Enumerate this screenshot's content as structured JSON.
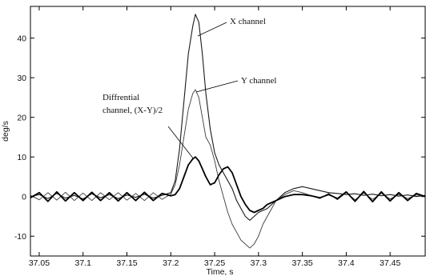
{
  "chart_data": {
    "type": "line",
    "title": "",
    "xlabel": "Time, s",
    "ylabel": "deg/s",
    "xlim": [
      37.04,
      37.49
    ],
    "ylim": [
      -15,
      48
    ],
    "xticks": [
      37.05,
      37.1,
      37.15,
      37.2,
      37.25,
      37.3,
      37.35,
      37.4,
      37.45
    ],
    "xtick_labels": [
      "37.05",
      "37.1",
      "37.15",
      "37.2",
      "37.25",
      "37.3",
      "37.35",
      "37.4",
      "37.45"
    ],
    "yticks": [
      -10,
      0,
      10,
      20,
      30,
      40
    ],
    "ytick_labels": [
      "-10",
      "0",
      "10",
      "20",
      "30",
      "40"
    ],
    "grid": false,
    "legend": "none",
    "annotations": [
      {
        "text": "X channel",
        "series": "X channel"
      },
      {
        "text": "Y channel",
        "series": "Y channel"
      },
      {
        "text": "Diffrential",
        "series": "Diffrential channel, (X-Y)/2"
      },
      {
        "text": "channel, (X-Y)/2",
        "series": "Diffrential channel, (X-Y)/2"
      }
    ],
    "series": [
      {
        "name": "X channel",
        "color": "#1a1a1a",
        "x": [
          37.04,
          37.05,
          37.06,
          37.07,
          37.08,
          37.09,
          37.1,
          37.11,
          37.12,
          37.13,
          37.14,
          37.15,
          37.16,
          37.17,
          37.18,
          37.19,
          37.2,
          37.205,
          37.21,
          37.215,
          37.22,
          37.225,
          37.228,
          37.232,
          37.236,
          37.24,
          37.245,
          37.25,
          37.255,
          37.26,
          37.265,
          37.27,
          37.275,
          37.28,
          37.285,
          37.29,
          37.295,
          37.3,
          37.31,
          37.32,
          37.33,
          37.34,
          37.35,
          37.36,
          37.37,
          37.38,
          37.39,
          37.4,
          37.41,
          37.42,
          37.43,
          37.44,
          37.45,
          37.46,
          37.47,
          37.48,
          37.49
        ],
        "y": [
          0,
          0.5,
          -0.5,
          0.8,
          -0.4,
          0.3,
          -0.6,
          0.7,
          -0.3,
          0.5,
          -0.5,
          0.4,
          -0.2,
          0.6,
          -0.4,
          0.3,
          1,
          4,
          12,
          24,
          36,
          43,
          46,
          44,
          36,
          26,
          17,
          11,
          8,
          6,
          4,
          2,
          -1,
          -3,
          -5,
          -6,
          -5,
          -4,
          -3,
          -1,
          1,
          2,
          2.5,
          2,
          1.5,
          1,
          0.8,
          0.5,
          0.7,
          0.3,
          0.6,
          0.2,
          0.5,
          0.1,
          0.4,
          0,
          0.3
        ]
      },
      {
        "name": "Y channel",
        "color": "#3a3a3a",
        "x": [
          37.04,
          37.05,
          37.06,
          37.07,
          37.08,
          37.09,
          37.1,
          37.11,
          37.12,
          37.13,
          37.14,
          37.15,
          37.16,
          37.17,
          37.18,
          37.19,
          37.2,
          37.205,
          37.21,
          37.215,
          37.22,
          37.225,
          37.228,
          37.232,
          37.236,
          37.24,
          37.245,
          37.25,
          37.255,
          37.26,
          37.265,
          37.27,
          37.275,
          37.28,
          37.285,
          37.29,
          37.295,
          37.3,
          37.305,
          37.31,
          37.315,
          37.32,
          37.33,
          37.34,
          37.35,
          37.36,
          37.37,
          37.38,
          37.39,
          37.4,
          37.41,
          37.42,
          37.43,
          37.44,
          37.45,
          37.46,
          37.47,
          37.48,
          37.49
        ],
        "y": [
          0.3,
          -0.8,
          1,
          -0.9,
          1.1,
          -1,
          0.9,
          -1,
          1,
          -0.8,
          1,
          -0.9,
          0.8,
          -1,
          1,
          -0.7,
          0.6,
          3,
          8,
          15,
          22,
          26,
          27,
          25,
          20,
          15,
          13,
          9,
          4,
          0,
          -4,
          -7,
          -9,
          -11,
          -12,
          -13,
          -12,
          -10,
          -7,
          -5,
          -3,
          -1,
          0.5,
          1.5,
          1,
          0.2,
          -0.5,
          0.8,
          -0.8,
          1,
          -0.8,
          0.9,
          -0.7,
          0.8,
          -0.6,
          0.5,
          -0.5,
          0.4,
          0
        ]
      },
      {
        "name": "Diffrential channel, (X-Y)/2",
        "color": "#000000",
        "x": [
          37.04,
          37.05,
          37.06,
          37.07,
          37.08,
          37.09,
          37.1,
          37.11,
          37.12,
          37.13,
          37.14,
          37.15,
          37.16,
          37.17,
          37.18,
          37.19,
          37.2,
          37.205,
          37.21,
          37.215,
          37.22,
          37.225,
          37.228,
          37.232,
          37.236,
          37.24,
          37.245,
          37.25,
          37.255,
          37.26,
          37.265,
          37.27,
          37.275,
          37.28,
          37.285,
          37.29,
          37.295,
          37.3,
          37.305,
          37.31,
          37.32,
          37.33,
          37.34,
          37.35,
          37.36,
          37.37,
          37.38,
          37.39,
          37.4,
          37.41,
          37.42,
          37.43,
          37.44,
          37.45,
          37.46,
          37.47,
          37.48,
          37.49
        ],
        "y": [
          -0.3,
          1,
          -1.2,
          1.2,
          -1.1,
          1,
          -1,
          1.1,
          -1,
          1,
          -1.1,
          1,
          -1,
          1.1,
          -1,
          0.8,
          0.2,
          0.5,
          2,
          5,
          8,
          9.5,
          10,
          9,
          7,
          5,
          3,
          3.5,
          5.5,
          7,
          7.5,
          6,
          3,
          0,
          -2,
          -3.5,
          -4,
          -3.5,
          -3,
          -2,
          -1,
          0,
          0.5,
          0.5,
          0.2,
          -0.3,
          0.5,
          -0.5,
          1.2,
          -1.2,
          1.3,
          -1.3,
          1.2,
          -1.1,
          1,
          -1,
          0.8,
          0
        ]
      }
    ]
  }
}
